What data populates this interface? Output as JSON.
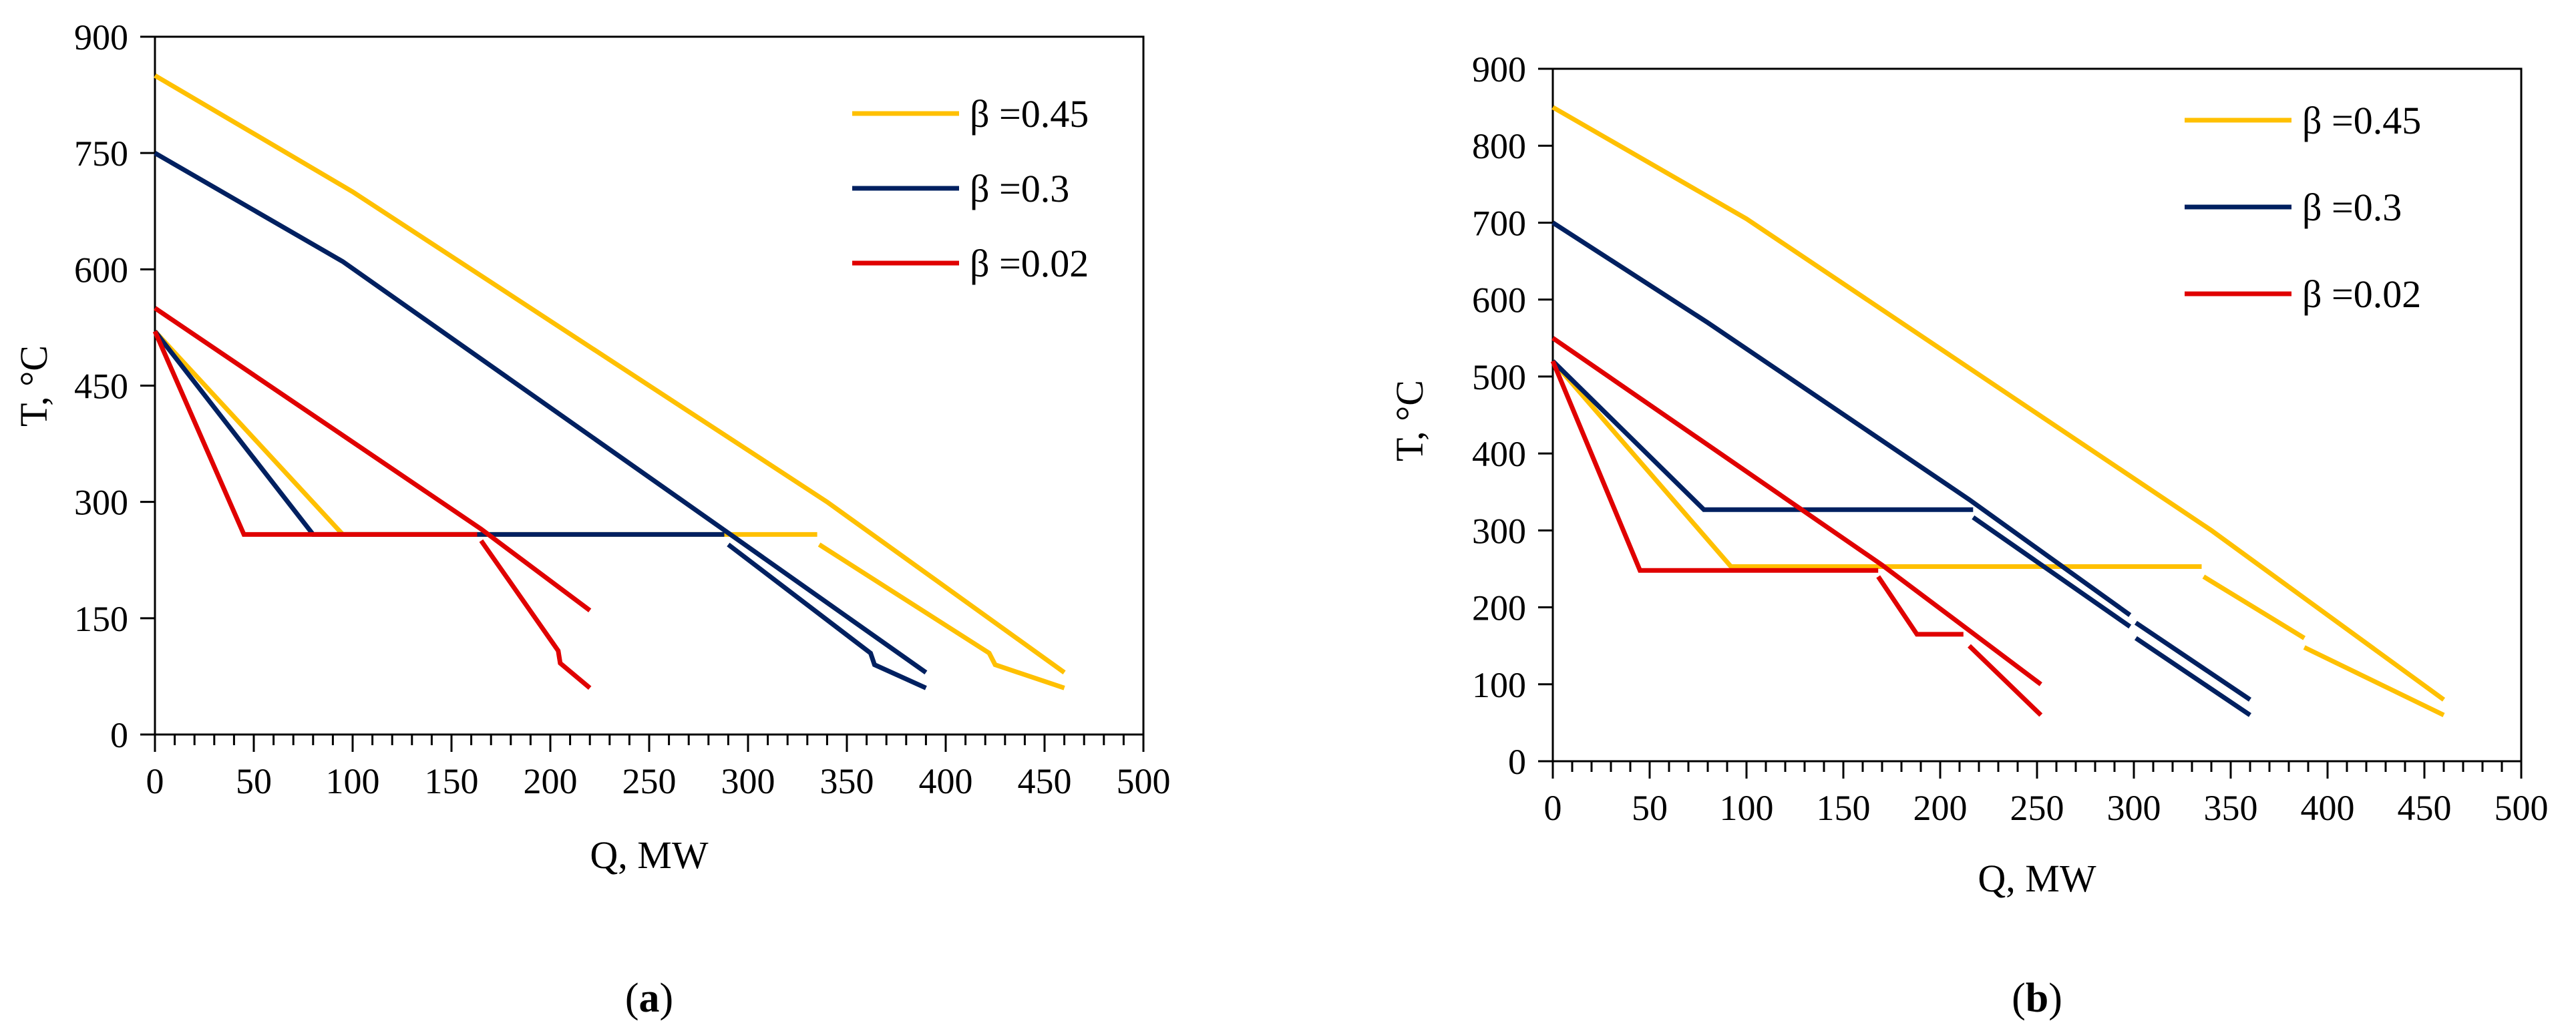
{
  "chart_data": [
    {
      "type": "line",
      "caption_prefix": "(",
      "caption_letter": "a",
      "caption_suffix": ")",
      "xlabel": "Q, MW",
      "ylabel": "T, °C",
      "xlim": [
        0,
        500
      ],
      "ylim": [
        0,
        900
      ],
      "xticks": [
        0,
        50,
        100,
        150,
        200,
        250,
        300,
        350,
        400,
        450,
        500
      ],
      "yticks": [
        0,
        150,
        300,
        450,
        600,
        750,
        900
      ],
      "grid": false,
      "legend_position": "top-right",
      "series": [
        {
          "name": "β =0.45",
          "color": "#FFC000",
          "segments": [
            [
              [
                0,
                850
              ],
              [
                100,
                700
              ],
              [
                340,
                300
              ],
              [
                460,
                80
              ]
            ],
            [
              [
                0,
                520
              ],
              [
                95,
                258
              ],
              [
                335,
                258
              ]
            ],
            [
              [
                336,
                245
              ],
              [
                422,
                105
              ],
              [
                425,
                90
              ],
              [
                460,
                60
              ]
            ]
          ]
        },
        {
          "name": "β =0.3",
          "color": "#002060",
          "segments": [
            [
              [
                0,
                750
              ],
              [
                95,
                610
              ],
              [
                290,
                260
              ],
              [
                390,
                80
              ]
            ],
            [
              [
                0,
                520
              ],
              [
                80,
                258
              ],
              [
                288,
                258
              ]
            ],
            [
              [
                290,
                245
              ],
              [
                362,
                105
              ],
              [
                364,
                90
              ],
              [
                390,
                60
              ]
            ]
          ]
        },
        {
          "name": "β =0.02",
          "color": "#E00000",
          "segments": [
            [
              [
                0,
                550
              ],
              [
                165,
                265
              ],
              [
                220,
                160
              ]
            ],
            [
              [
                0,
                520
              ],
              [
                45,
                258
              ],
              [
                163,
                258
              ]
            ],
            [
              [
                165,
                250
              ],
              [
                204,
                108
              ],
              [
                205,
                92
              ],
              [
                220,
                60
              ]
            ]
          ]
        }
      ]
    },
    {
      "type": "line",
      "caption_prefix": "(",
      "caption_letter": "b",
      "caption_suffix": ")",
      "xlabel": "Q, MW",
      "ylabel": "T, °C",
      "xlim": [
        0,
        500
      ],
      "ylim": [
        0,
        900
      ],
      "xticks": [
        0,
        50,
        100,
        150,
        200,
        250,
        300,
        350,
        400,
        450,
        500
      ],
      "yticks": [
        0,
        100,
        200,
        300,
        400,
        500,
        600,
        700,
        800,
        900
      ],
      "grid": false,
      "legend_position": "top-right",
      "series": [
        {
          "name": "β =0.45",
          "color": "#FFC000",
          "segments": [
            [
              [
                0,
                850
              ],
              [
                100,
                705
              ],
              [
                340,
                300
              ],
              [
                460,
                80
              ]
            ],
            [
              [
                0,
                520
              ],
              [
                92,
                253
              ],
              [
                335,
                253
              ]
            ],
            [
              [
                336,
                240
              ],
              [
                388,
                160
              ]
            ],
            [
              [
                388,
                148
              ],
              [
                460,
                60
              ]
            ]
          ]
        },
        {
          "name": "β =0.3",
          "color": "#002060",
          "segments": [
            [
              [
                0,
                700
              ],
              [
                80,
                570
              ],
              [
                215,
                340
              ],
              [
                298,
                190
              ]
            ],
            [
              [
                0,
                520
              ],
              [
                78,
                327
              ],
              [
                217,
                327
              ]
            ],
            [
              [
                217,
                317
              ],
              [
                298,
                175
              ]
            ],
            [
              [
                301,
                180
              ],
              [
                360,
                80
              ]
            ],
            [
              [
                301,
                160
              ],
              [
                360,
                60
              ]
            ]
          ]
        },
        {
          "name": "β =0.02",
          "color": "#E00000",
          "segments": [
            [
              [
                0,
                550
              ],
              [
                170,
                255
              ],
              [
                252,
                100
              ]
            ],
            [
              [
                0,
                520
              ],
              [
                45,
                248
              ],
              [
                168,
                248
              ]
            ],
            [
              [
                168,
                240
              ],
              [
                188,
                165
              ],
              [
                212,
                165
              ]
            ],
            [
              [
                215,
                150
              ],
              [
                252,
                60
              ]
            ]
          ]
        }
      ]
    }
  ]
}
